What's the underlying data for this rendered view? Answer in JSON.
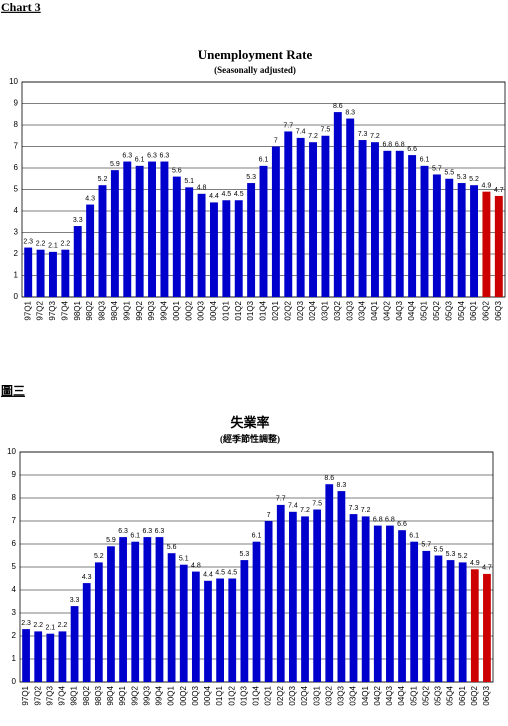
{
  "chart_data": [
    {
      "type": "bar",
      "heading": "Chart 3",
      "title": "Unemployment Rate",
      "subtitle": "(Seasonally adjusted)",
      "categories": [
        "97Q1",
        "97Q2",
        "97Q3",
        "97Q4",
        "98Q1",
        "98Q2",
        "98Q3",
        "98Q4",
        "99Q1",
        "99Q2",
        "99Q3",
        "99Q4",
        "00Q1",
        "00Q2",
        "00Q3",
        "00Q4",
        "01Q1",
        "01Q2",
        "01Q3",
        "01Q4",
        "02Q1",
        "02Q2",
        "02Q3",
        "02Q4",
        "03Q1",
        "03Q2",
        "03Q3",
        "03Q4",
        "04Q1",
        "04Q2",
        "04Q3",
        "04Q4",
        "05Q1",
        "05Q2",
        "05Q3",
        "05Q4",
        "06Q1",
        "06Q2",
        "06Q3"
      ],
      "values": [
        2.3,
        2.2,
        2.1,
        2.2,
        3.3,
        4.3,
        5.2,
        5.9,
        6.3,
        6.1,
        6.3,
        6.3,
        5.6,
        5.1,
        4.8,
        4.4,
        4.5,
        4.5,
        5.3,
        6.1,
        7.0,
        7.7,
        7.4,
        7.2,
        7.5,
        8.6,
        8.3,
        7.3,
        7.2,
        6.8,
        6.8,
        6.6,
        6.1,
        5.7,
        5.5,
        5.3,
        5.2,
        4.9,
        4.7
      ],
      "colors": [
        "#0000cc",
        "#0000cc",
        "#0000cc",
        "#0000cc",
        "#0000cc",
        "#0000cc",
        "#0000cc",
        "#0000cc",
        "#0000cc",
        "#0000cc",
        "#0000cc",
        "#0000cc",
        "#0000cc",
        "#0000cc",
        "#0000cc",
        "#0000cc",
        "#0000cc",
        "#0000cc",
        "#0000cc",
        "#0000cc",
        "#0000cc",
        "#0000cc",
        "#0000cc",
        "#0000cc",
        "#0000cc",
        "#0000cc",
        "#0000cc",
        "#0000cc",
        "#0000cc",
        "#0000cc",
        "#0000cc",
        "#0000cc",
        "#0000cc",
        "#0000cc",
        "#0000cc",
        "#0000cc",
        "#0000cc",
        "#cc0000",
        "#cc0000"
      ],
      "ylim": [
        0,
        10
      ],
      "yticks": [
        0,
        1,
        2,
        3,
        4,
        5,
        6,
        7,
        8,
        9,
        10
      ],
      "grid": true
    },
    {
      "type": "bar",
      "heading": "圖三",
      "title": "失業率",
      "subtitle": "(經季節性調整)",
      "categories": [
        "97Q1",
        "97Q2",
        "97Q3",
        "97Q4",
        "98Q1",
        "98Q2",
        "98Q3",
        "98Q4",
        "99Q1",
        "99Q2",
        "99Q3",
        "99Q4",
        "00Q1",
        "00Q2",
        "00Q3",
        "00Q4",
        "01Q1",
        "01Q2",
        "01Q3",
        "01Q4",
        "02Q1",
        "02Q2",
        "02Q3",
        "02Q4",
        "03Q1",
        "03Q2",
        "03Q3",
        "03Q4",
        "04Q1",
        "04Q2",
        "04Q3",
        "04Q4",
        "05Q1",
        "05Q2",
        "05Q3",
        "05Q4",
        "06Q1",
        "06Q2",
        "06Q3"
      ],
      "values": [
        2.3,
        2.2,
        2.1,
        2.2,
        3.3,
        4.3,
        5.2,
        5.9,
        6.3,
        6.1,
        6.3,
        6.3,
        5.6,
        5.1,
        4.8,
        4.4,
        4.5,
        4.5,
        5.3,
        6.1,
        7.0,
        7.7,
        7.4,
        7.2,
        7.5,
        8.6,
        8.3,
        7.3,
        7.2,
        6.8,
        6.8,
        6.6,
        6.1,
        5.7,
        5.5,
        5.3,
        5.2,
        4.9,
        4.7
      ],
      "colors": [
        "#0000cc",
        "#0000cc",
        "#0000cc",
        "#0000cc",
        "#0000cc",
        "#0000cc",
        "#0000cc",
        "#0000cc",
        "#0000cc",
        "#0000cc",
        "#0000cc",
        "#0000cc",
        "#0000cc",
        "#0000cc",
        "#0000cc",
        "#0000cc",
        "#0000cc",
        "#0000cc",
        "#0000cc",
        "#0000cc",
        "#0000cc",
        "#0000cc",
        "#0000cc",
        "#0000cc",
        "#0000cc",
        "#0000cc",
        "#0000cc",
        "#0000cc",
        "#0000cc",
        "#0000cc",
        "#0000cc",
        "#0000cc",
        "#0000cc",
        "#0000cc",
        "#0000cc",
        "#0000cc",
        "#0000cc",
        "#cc0000",
        "#cc0000"
      ],
      "ylim": [
        0,
        10
      ],
      "yticks": [
        0,
        1,
        2,
        3,
        4,
        5,
        6,
        7,
        8,
        9,
        10
      ],
      "grid": true
    }
  ]
}
